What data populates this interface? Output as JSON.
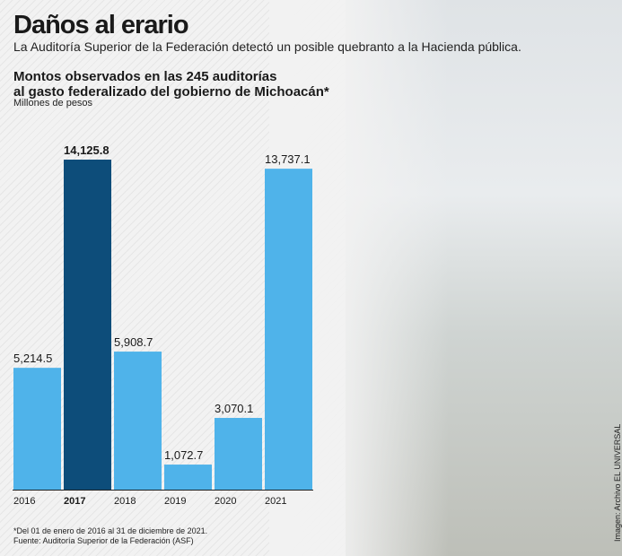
{
  "header": {
    "title": "Daños al erario",
    "subtitle": "La Auditoría Superior de la Federación detectó un posible quebranto a la Hacienda pública."
  },
  "chart_meta": {
    "title_line1": "Montos observados en las 245 auditorías",
    "title_line2": "al gasto federalizado del gobierno de Michoacán*",
    "units": "Millones de pesos"
  },
  "chart_data": {
    "type": "bar",
    "title": "Montos observados en las 245 auditorías al gasto federalizado del gobierno de Michoacán*",
    "ylabel": "Millones de pesos",
    "xlabel": "",
    "categories": [
      "2016",
      "2017",
      "2018",
      "2019",
      "2020",
      "2021"
    ],
    "values": [
      5214.5,
      14125.8,
      5908.7,
      1072.7,
      3070.1,
      13737.1
    ],
    "value_labels": [
      "5,214.5",
      "14,125.8",
      "5,908.7",
      "1,072.7",
      "3,070.1",
      "13,737.1"
    ],
    "highlight_index": 1,
    "ylim": [
      0,
      14125.8
    ],
    "grid": false,
    "colors": {
      "default": "#4fb3ea",
      "highlight": "#0d4d7a",
      "axis": "#222222"
    }
  },
  "footer": {
    "note": "*Del 01 de enero de 2016 al 31 de diciembre de 2021.",
    "source": "Fuente: Auditoría Superior de la Federación (ASF)",
    "photo_credit": "Imagen: Archivo EL UNIVERSAL"
  }
}
